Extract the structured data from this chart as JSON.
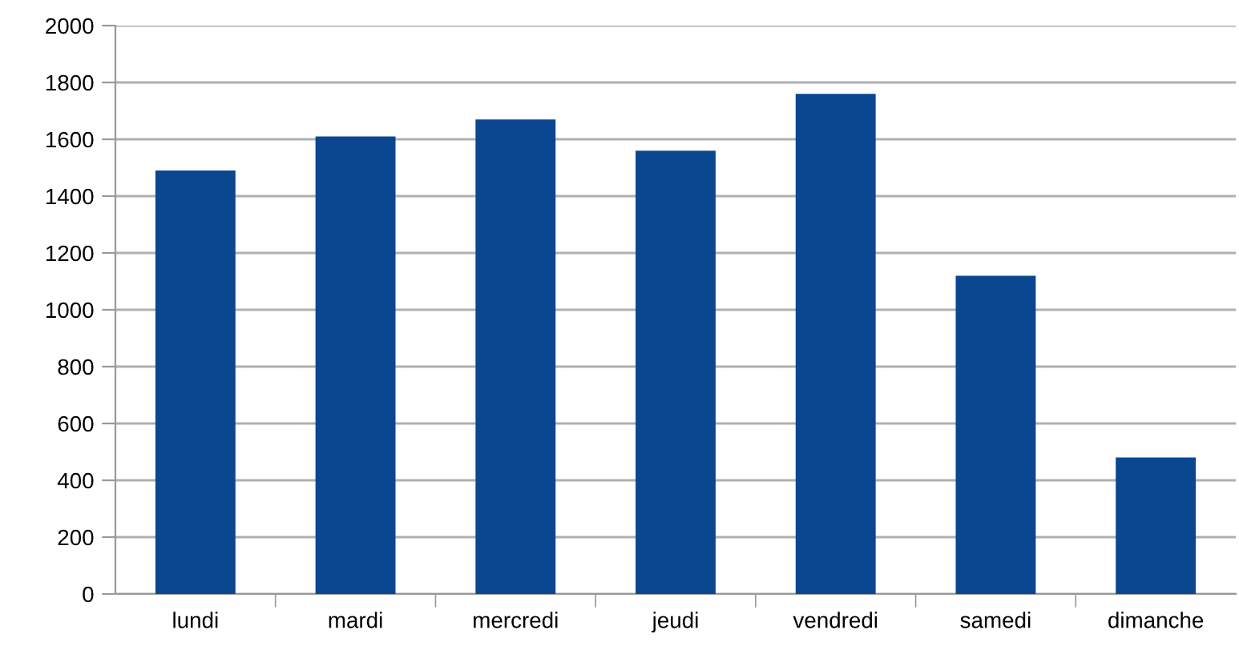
{
  "chart_data": {
    "type": "bar",
    "categories": [
      "lundi",
      "mardi",
      "mercredi",
      "jeudi",
      "vendredi",
      "samedi",
      "dimanche"
    ],
    "values": [
      1490,
      1610,
      1670,
      1560,
      1760,
      1120,
      480
    ],
    "color": "#0b4690",
    "ylim": [
      0,
      2000
    ],
    "yticks": [
      0,
      200,
      400,
      600,
      800,
      1000,
      1200,
      1400,
      1600,
      1800,
      2000
    ],
    "grid": "y",
    "legend": false
  }
}
